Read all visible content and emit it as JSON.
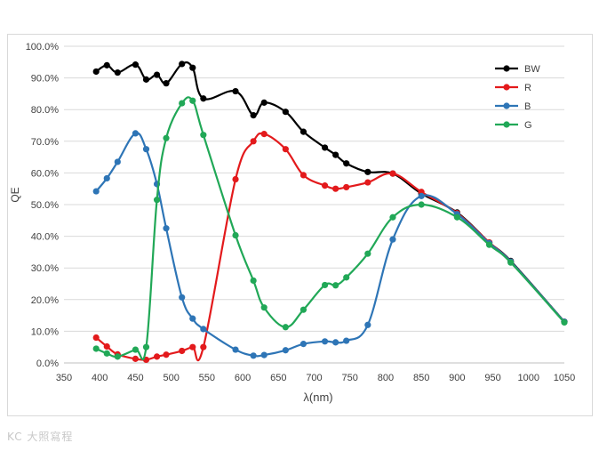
{
  "chart_data": {
    "type": "line",
    "xlabel": "λ(nm)",
    "ylabel": "QE",
    "xlim": [
      350,
      1050
    ],
    "ylim": [
      0,
      100
    ],
    "x_ticks": [
      "350",
      "400",
      "450",
      "500",
      "550",
      "600",
      "650",
      "700",
      "750",
      "800",
      "850",
      "900",
      "950",
      "1000",
      "1050"
    ],
    "y_ticks": [
      "0.0%",
      "10.0%",
      "20.0%",
      "30.0%",
      "40.0%",
      "50.0%",
      "60.0%",
      "70.0%",
      "80.0%",
      "90.0%",
      "100.0%"
    ],
    "grid": true,
    "legend_position": "top-right",
    "series": [
      {
        "name": "BW",
        "color": "#000000",
        "points": [
          [
            395,
            92
          ],
          [
            410,
            94
          ],
          [
            425,
            91.7
          ],
          [
            450,
            94.2
          ],
          [
            465,
            89.5
          ],
          [
            480,
            91
          ],
          [
            493,
            88.3
          ],
          [
            515,
            94.4
          ],
          [
            530,
            93.2
          ],
          [
            545,
            83.5
          ],
          [
            590,
            85.8
          ],
          [
            615,
            78.2
          ],
          [
            630,
            82.2
          ],
          [
            660,
            79.3
          ],
          [
            685,
            73
          ],
          [
            715,
            68
          ],
          [
            730,
            65.7
          ],
          [
            745,
            63
          ],
          [
            775,
            60.3
          ],
          [
            810,
            59.8
          ],
          [
            850,
            53.5
          ],
          [
            900,
            47.5
          ],
          [
            945,
            38
          ],
          [
            975,
            32.2
          ],
          [
            1050,
            13
          ]
        ]
      },
      {
        "name": "R",
        "color": "#e31a1c",
        "points": [
          [
            395,
            8
          ],
          [
            410,
            5.2
          ],
          [
            425,
            2.7
          ],
          [
            450,
            1.3
          ],
          [
            465,
            1
          ],
          [
            480,
            2
          ],
          [
            493,
            2.6
          ],
          [
            515,
            3.8
          ],
          [
            530,
            5
          ],
          [
            545,
            5
          ],
          [
            590,
            58
          ],
          [
            615,
            70
          ],
          [
            630,
            72.3
          ],
          [
            660,
            67.5
          ],
          [
            685,
            59.3
          ],
          [
            715,
            56
          ],
          [
            730,
            55
          ],
          [
            745,
            55.5
          ],
          [
            775,
            57
          ],
          [
            810,
            59.8
          ],
          [
            850,
            54
          ],
          [
            900,
            47.3
          ],
          [
            945,
            38
          ],
          [
            975,
            32
          ],
          [
            1050,
            13
          ]
        ]
      },
      {
        "name": "B",
        "color": "#2e75b6",
        "points": [
          [
            395,
            54.2
          ],
          [
            410,
            58.3
          ],
          [
            425,
            63.5
          ],
          [
            450,
            72.5
          ],
          [
            465,
            67.5
          ],
          [
            480,
            56.5
          ],
          [
            493,
            42.5
          ],
          [
            515,
            20.7
          ],
          [
            530,
            14
          ],
          [
            545,
            10.7
          ],
          [
            590,
            4.2
          ],
          [
            615,
            2.3
          ],
          [
            630,
            2.5
          ],
          [
            660,
            4
          ],
          [
            685,
            6
          ],
          [
            715,
            6.8
          ],
          [
            730,
            6.5
          ],
          [
            745,
            7
          ],
          [
            775,
            12
          ],
          [
            810,
            39
          ],
          [
            850,
            52.7
          ],
          [
            900,
            47
          ],
          [
            945,
            37.8
          ],
          [
            975,
            32
          ],
          [
            1050,
            13
          ]
        ]
      },
      {
        "name": "G",
        "color": "#21a857",
        "points": [
          [
            395,
            4.5
          ],
          [
            410,
            3
          ],
          [
            425,
            2
          ],
          [
            450,
            4.2
          ],
          [
            465,
            5
          ],
          [
            480,
            51.5
          ],
          [
            493,
            71
          ],
          [
            515,
            82
          ],
          [
            530,
            82.8
          ],
          [
            545,
            72
          ],
          [
            590,
            40.3
          ],
          [
            615,
            26
          ],
          [
            630,
            17.5
          ],
          [
            660,
            11.3
          ],
          [
            685,
            16.8
          ],
          [
            715,
            24.6
          ],
          [
            730,
            24.5
          ],
          [
            745,
            27
          ],
          [
            775,
            34.5
          ],
          [
            810,
            46
          ],
          [
            850,
            50
          ],
          [
            900,
            46
          ],
          [
            945,
            37.3
          ],
          [
            975,
            31.7
          ],
          [
            1050,
            12.8
          ]
        ]
      }
    ]
  },
  "watermark": {
    "text": "KC 大照寫程"
  }
}
